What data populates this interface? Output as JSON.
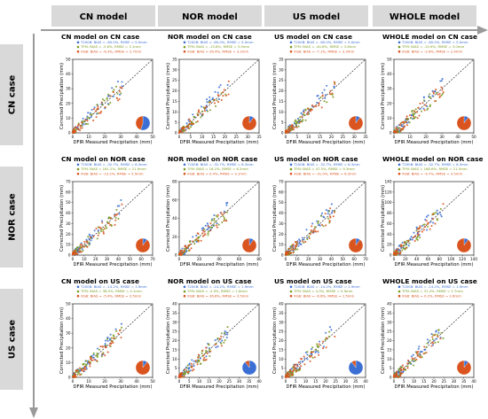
{
  "columns": [
    "CN model",
    "NOR model",
    "US model",
    "WHOLE model"
  ],
  "rows": [
    "CN case",
    "NOR case",
    "US case"
  ],
  "colors": {
    "T200B": "#3b6fd4",
    "TFM": "#7a9a1e",
    "XGB": "#d9541e",
    "header_bg": "#d9d9d9",
    "arrow": "#9a9a9a"
  },
  "chart_data": [
    {
      "type": "scatter",
      "title": "CN model on CN case",
      "xlabel": "DFIR Measured Precipitation (mm)",
      "ylabel": "Corrected Precipitation (mm)",
      "xlim": [
        0,
        50
      ],
      "ylim": [
        0,
        50
      ],
      "xticks": [
        0,
        10,
        20,
        30,
        40,
        50
      ],
      "yticks": [
        0,
        10,
        20,
        30,
        40,
        50
      ],
      "pie": [
        0.55,
        0.45
      ],
      "series": [
        {
          "name": "T200B",
          "legend": "T200B: BIAS = -60.0%, RMSE = 5.0mm"
        },
        {
          "name": "TFM",
          "legend": "TFM: BIAS = -3.6%, RMSE = 3.1mm"
        },
        {
          "name": "XGB",
          "legend": "XGB: BIAS = -6.3%, RMSE = 2.7mm"
        }
      ]
    },
    {
      "type": "scatter",
      "title": "NOR model on CN case",
      "xlabel": "DFIR Measured Precipitation (mm)",
      "ylabel": "Corrected Precipitation (mm)",
      "xlim": [
        0,
        35
      ],
      "ylim": [
        0,
        35
      ],
      "xticks": [
        0,
        5,
        10,
        15,
        20,
        25,
        30,
        35
      ],
      "yticks": [
        0,
        5,
        10,
        15,
        20,
        25,
        30,
        35
      ],
      "pie": [
        0.1,
        0.9
      ],
      "series": [
        {
          "name": "T200B",
          "legend": "T200B: BIAS = -60.0%, RMSE = 5.0mm"
        },
        {
          "name": "TFM",
          "legend": "TFM: BIAS = -13.8%, RMSE = 3.5mm"
        },
        {
          "name": "XGB",
          "legend": "XGB: BIAS = 26.4%, RMSE = 3.2mm"
        }
      ]
    },
    {
      "type": "scatter",
      "title": "US model on CN case",
      "xlabel": "DFIR Measured Precipitation (mm)",
      "ylabel": "Corrected Precipitation (mm)",
      "xlim": [
        0,
        35
      ],
      "ylim": [
        0,
        35
      ],
      "xticks": [
        0,
        5,
        10,
        15,
        20,
        25,
        30,
        35
      ],
      "yticks": [
        0,
        5,
        10,
        15,
        20,
        25,
        30,
        35
      ],
      "pie": [
        0.1,
        0.9
      ],
      "series": [
        {
          "name": "T200B",
          "legend": "T200B: BIAS = -60.0%, RMSE = 5.0mm"
        },
        {
          "name": "TFM",
          "legend": "TFM: BIAS = -44.6%, RMSE = 3.8mm"
        },
        {
          "name": "XGB",
          "legend": "XGB: BIAS = -7.1%, RMSE = 3.3mm"
        }
      ]
    },
    {
      "type": "scatter",
      "title": "WHOLE model on CN case",
      "xlabel": "DFIR Measured Precipitation (mm)",
      "ylabel": "Corrected Precipitation (mm)",
      "xlim": [
        0,
        50
      ],
      "ylim": [
        0,
        50
      ],
      "xticks": [
        0,
        10,
        20,
        30,
        40,
        50
      ],
      "yticks": [
        0,
        10,
        20,
        30,
        40,
        50
      ],
      "pie": [
        0.1,
        0.9
      ],
      "series": [
        {
          "name": "T200B",
          "legend": "T200B: BIAS = -60.0%, RMSE = 5.0mm"
        },
        {
          "name": "TFM",
          "legend": "TFM: BIAS = -19.9%, RMSE = 3.0mm"
        },
        {
          "name": "XGB",
          "legend": "XGB: BIAS = -2.6%, RMSE = 2.4mm"
        }
      ]
    },
    {
      "type": "scatter",
      "title": "CN model on NOR case",
      "xlabel": "DFIR Measured Precipitation (mm)",
      "ylabel": "Corrected Precipitation (mm)",
      "xlim": [
        0,
        70
      ],
      "ylim": [
        0,
        70
      ],
      "xticks": [
        0,
        10,
        20,
        30,
        40,
        50,
        60,
        70
      ],
      "yticks": [
        0,
        10,
        20,
        30,
        40,
        50,
        60,
        70
      ],
      "pie": [
        0.1,
        0.9
      ],
      "series": [
        {
          "name": "T200B",
          "legend": "T200B: BIAS = -32.7%, RMSE = 6.3mm"
        },
        {
          "name": "TFM",
          "legend": "TFM: BIAS = 161.2%, RMSE = 21.9mm"
        },
        {
          "name": "XGB",
          "legend": "XGB: BIAS = -13.2%, RMSE = 5.5mm"
        }
      ]
    },
    {
      "type": "scatter",
      "title": "NOR model on NOR case",
      "xlabel": "DFIR Measured Precipitation (mm)",
      "ylabel": "Corrected Precipitation (mm)",
      "xlim": [
        0,
        80
      ],
      "ylim": [
        0,
        80
      ],
      "xticks": [
        0,
        20,
        40,
        60,
        80
      ],
      "yticks": [
        0,
        20,
        40,
        60,
        80
      ],
      "pie": [
        0.1,
        0.9
      ],
      "series": [
        {
          "name": "T200B",
          "legend": "T200B: BIAS = -32.7%, RMSE = 6.3mm"
        },
        {
          "name": "TFM",
          "legend": "TFM: BIAS = 16.2%, RMSE = 6.2mm"
        },
        {
          "name": "XGB",
          "legend": "XGB: BIAS = 0.4%, RMSE = 3.1mm"
        }
      ]
    },
    {
      "type": "scatter",
      "title": "US model on NOR case",
      "xlabel": "DFIR Measured Precipitation (mm)",
      "ylabel": "Corrected Precipitation (mm)",
      "xlim": [
        0,
        70
      ],
      "ylim": [
        0,
        70
      ],
      "xticks": [
        0,
        10,
        20,
        30,
        40,
        50,
        60,
        70
      ],
      "yticks": [
        0,
        10,
        20,
        30,
        40,
        50,
        60,
        70
      ],
      "pie": [
        0.1,
        0.9
      ],
      "series": [
        {
          "name": "T200B",
          "legend": "T200B: BIAS = -32.7%, RMSE = 6.3mm"
        },
        {
          "name": "TFM",
          "legend": "TFM: BIAS = 47.5%, RMSE = 9.3mm"
        },
        {
          "name": "XGB",
          "legend": "XGB: BIAS = -31.0%, RMSE = 6.3mm"
        }
      ]
    },
    {
      "type": "scatter",
      "title": "WHOLE model on NOR case",
      "xlabel": "DFIR Measured Precipitation (mm)",
      "ylabel": "Corrected Precipitation (mm)",
      "xlim": [
        0,
        140
      ],
      "ylim": [
        0,
        140
      ],
      "xticks": [
        0,
        20,
        40,
        60,
        80,
        100,
        120,
        140
      ],
      "yticks": [
        0,
        20,
        40,
        60,
        80,
        100,
        120,
        140
      ],
      "pie": [
        0.1,
        0.9
      ],
      "series": [
        {
          "name": "T200B",
          "legend": "T200B: BIAS = -32.7%, RMSE = 6.3mm"
        },
        {
          "name": "TFM",
          "legend": "TFM: BIAS = 168.6%, RMSE = 21.5mm"
        },
        {
          "name": "XGB",
          "legend": "XGB: BIAS = -9.7%, RMSE = 3.5mm"
        }
      ]
    },
    {
      "type": "scatter",
      "title": "CN model on US case",
      "xlabel": "DFIR Measured Precipitation (mm)",
      "ylabel": "Corrected Precipitation (mm)",
      "xlim": [
        0,
        50
      ],
      "ylim": [
        0,
        50
      ],
      "xticks": [
        0,
        10,
        20,
        30,
        40,
        50
      ],
      "yticks": [
        0,
        10,
        20,
        30,
        40,
        50
      ],
      "pie": [
        0.1,
        0.9
      ],
      "series": [
        {
          "name": "T200B",
          "legend": "T200B: BIAS = -14.2%, RMSE = 1.9mm"
        },
        {
          "name": "TFM",
          "legend": "TFM: BIAS = 38.0%, RMSE = 4.1mm"
        },
        {
          "name": "XGB",
          "legend": "XGB: BIAS = -5.4%, RMSE = 3.5mm"
        }
      ]
    },
    {
      "type": "scatter",
      "title": "NOR model on US case",
      "xlabel": "DFIR Measured Precipitation (mm)",
      "ylabel": "Corrected Precipitation (mm)",
      "xlim": [
        0,
        40
      ],
      "ylim": [
        0,
        40
      ],
      "xticks": [
        0,
        5,
        10,
        15,
        20,
        25,
        30,
        35,
        40
      ],
      "yticks": [
        0,
        5,
        10,
        15,
        20,
        25,
        30,
        35,
        40
      ],
      "pie": [
        0.9,
        0.1
      ],
      "series": [
        {
          "name": "T200B",
          "legend": "T200B: BIAS = -14.2%, RMSE = 1.9mm"
        },
        {
          "name": "TFM",
          "legend": "TFM: BIAS = -2.9%, RMSE = 1.6mm"
        },
        {
          "name": "XGB",
          "legend": "XGB: BIAS = 36.8%, RMSE = 3.5mm"
        }
      ]
    },
    {
      "type": "scatter",
      "title": "US model on US case",
      "xlabel": "DFIR Measured Precipitation (mm)",
      "ylabel": "Corrected Precipitation (mm)",
      "xlim": [
        0,
        40
      ],
      "ylim": [
        0,
        40
      ],
      "xticks": [
        0,
        5,
        10,
        15,
        20,
        25,
        30,
        35,
        40
      ],
      "yticks": [
        0,
        5,
        10,
        15,
        20,
        25,
        30,
        35,
        40
      ],
      "pie": [
        0.9,
        0.1
      ],
      "series": [
        {
          "name": "T200B",
          "legend": "T200B: BIAS = -14.2%, RMSE = 1.9mm"
        },
        {
          "name": "TFM",
          "legend": "TFM: BIAS = 4.3%, RMSE = 0.9mm"
        },
        {
          "name": "XGB",
          "legend": "XGB: BIAS = -6.6%, RMSE = 1.5mm"
        }
      ]
    },
    {
      "type": "scatter",
      "title": "WHOLE model on US case",
      "xlabel": "DFIR Measured Precipitation (mm)",
      "ylabel": "Corrected Precipitation (mm)",
      "xlim": [
        0,
        40
      ],
      "ylim": [
        0,
        40
      ],
      "xticks": [
        0,
        5,
        10,
        15,
        20,
        25,
        30,
        35,
        40
      ],
      "yticks": [
        0,
        5,
        10,
        15,
        20,
        25,
        30,
        35,
        40
      ],
      "pie": [
        0.1,
        0.9
      ],
      "series": [
        {
          "name": "T200B",
          "legend": "T200B: BIAS = -14.2%, RMSE = 1.9mm"
        },
        {
          "name": "TFM",
          "legend": "TFM: BIAS = 31.4%, RMSE = 2.7mm"
        },
        {
          "name": "XGB",
          "legend": "XGB: BIAS = 0.2%, RMSE = 2.6mm"
        }
      ]
    }
  ]
}
